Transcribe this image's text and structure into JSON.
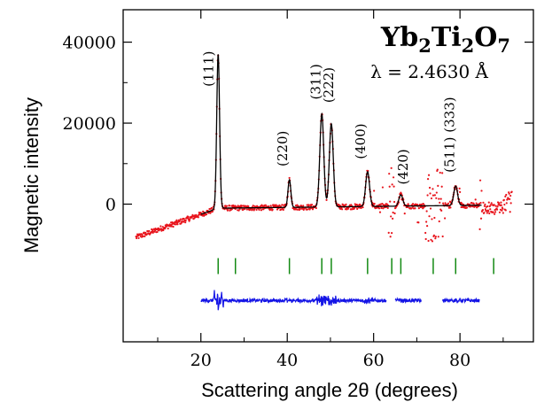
{
  "chart_data": {
    "type": "scatter",
    "title_parts": [
      {
        "text": "Yb",
        "sub": false
      },
      {
        "text": "2",
        "sub": true
      },
      {
        "text": "Ti",
        "sub": false
      },
      {
        "text": "2",
        "sub": true
      },
      {
        "text": "O",
        "sub": false
      },
      {
        "text": "7",
        "sub": true
      }
    ],
    "subtitle": "λ = 2.4630 Å",
    "xlabel": "Scattering angle 2θ (degrees)",
    "ylabel": "Magnetic intensity",
    "xlim": [
      2,
      97
    ],
    "ylim": [
      -34000,
      48000
    ],
    "x_ticks": [
      20,
      40,
      60,
      80
    ],
    "y_ticks": [
      0,
      20000,
      40000
    ],
    "y_tick_labels": [
      "0",
      "20000",
      "40000"
    ],
    "colors": {
      "observed": "#e8141c",
      "calculated": "#000000",
      "difference": "#1414e6",
      "bragg": "#138a13"
    },
    "peaks": [
      {
        "label": "(111)",
        "x": 24.0,
        "height": 38000
      },
      {
        "label": "(220)",
        "x": 40.5,
        "height": 6800
      },
      {
        "label": "(311)",
        "x": 48.0,
        "height": 23000
      },
      {
        "label": "(222)",
        "x": 50.2,
        "height": 20500
      },
      {
        "label": "(400)",
        "x": 58.6,
        "height": 8600
      },
      {
        "label": "(420)",
        "x": 66.3,
        "height": 2800
      },
      {
        "label": "(511) (333)",
        "x": 79.0,
        "height": 4800
      }
    ],
    "bragg_ticks_x": [
      24.0,
      28.0,
      40.5,
      48.0,
      50.2,
      58.6,
      64.2,
      66.3,
      73.8,
      79.0,
      87.8
    ],
    "bragg_ticks_y": -15300,
    "difference_baseline_y": -23800,
    "series": [
      {
        "role": "observed",
        "x_range": [
          5,
          92
        ],
        "style": "points"
      },
      {
        "role": "calculated",
        "x_range": [
          20,
          85
        ],
        "style": "line"
      },
      {
        "role": "difference",
        "segments": [
          [
            20,
            63
          ],
          [
            65,
            71
          ],
          [
            76,
            84.5
          ]
        ],
        "style": "line"
      }
    ]
  }
}
